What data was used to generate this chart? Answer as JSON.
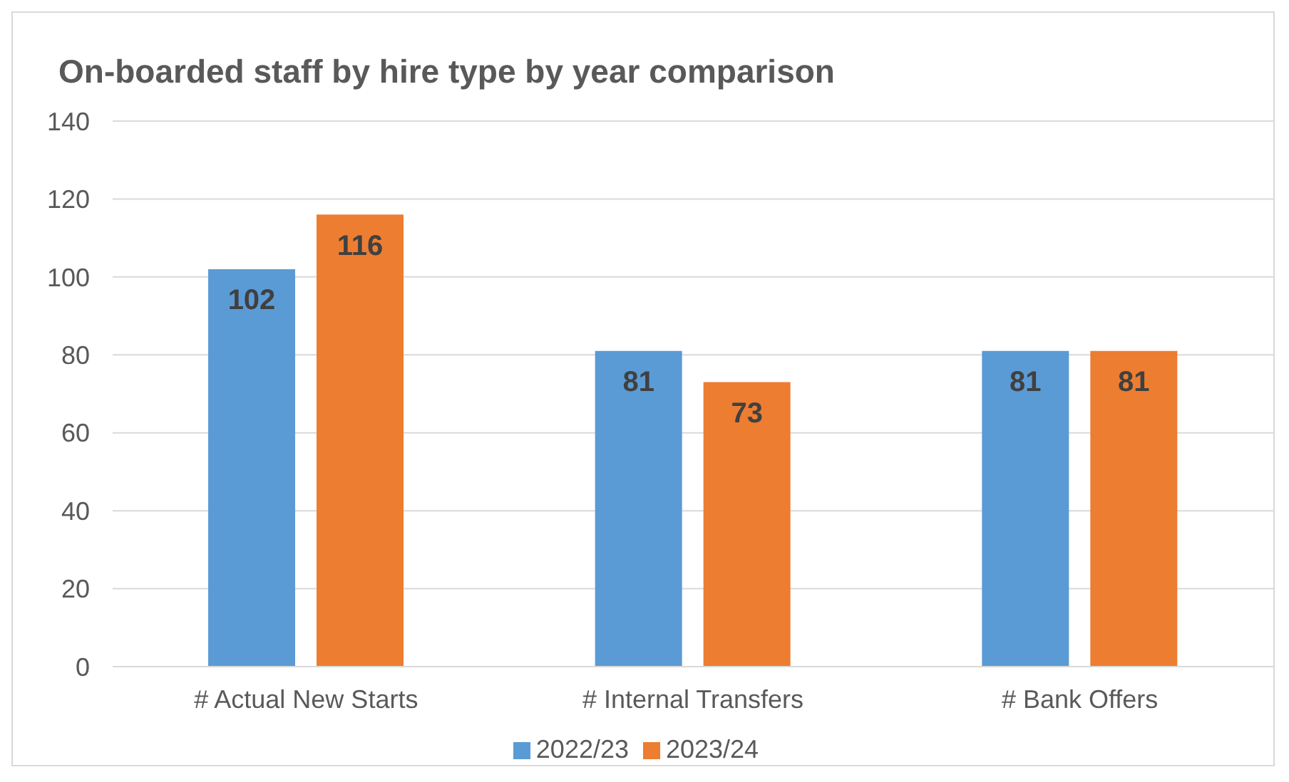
{
  "chart_data": {
    "type": "bar",
    "title": "On-boarded staff by hire type by year comparison",
    "categories": [
      "# Actual New Starts",
      "# Internal Transfers",
      "# Bank Offers"
    ],
    "series": [
      {
        "name": "2022/23",
        "color": "#5b9bd5",
        "values": [
          102,
          81,
          81
        ]
      },
      {
        "name": "2023/24",
        "color": "#ed7d31",
        "values": [
          116,
          73,
          81
        ]
      }
    ],
    "ylim": [
      0,
      140
    ],
    "yticks": [
      0,
      20,
      40,
      60,
      80,
      100,
      120,
      140
    ],
    "grid": "y",
    "legend": "bottom",
    "data_labels": true
  }
}
